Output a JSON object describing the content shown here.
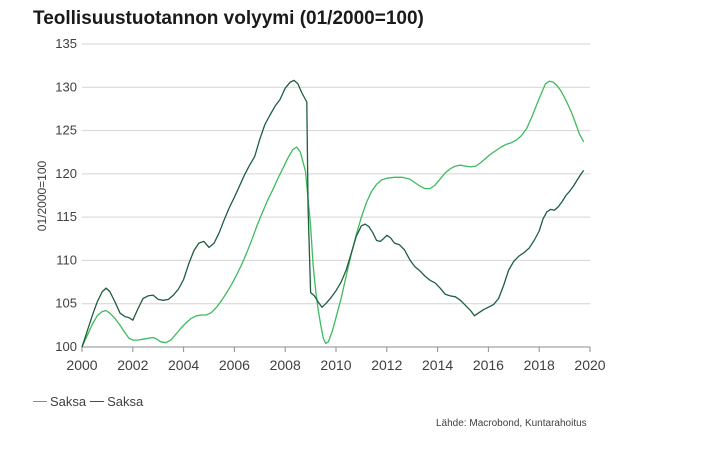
{
  "title": "Teollisuustuotannon volyymi (01/2000=100)",
  "source": "Lähde: Macrobond, Kuntarahoitus",
  "chart_data": {
    "type": "line",
    "title": "Teollisuustuotannon volyymi (01/2000=100)",
    "xlabel": "",
    "ylabel": "01/2000=100",
    "xlim": [
      2000,
      2020
    ],
    "ylim": [
      100,
      135
    ],
    "xticks": [
      "2000",
      "2002",
      "2004",
      "2006",
      "2008",
      "2010",
      "2012",
      "2014",
      "2016",
      "2018",
      "2020"
    ],
    "yticks": [
      "100",
      "105",
      "110",
      "115",
      "120",
      "125",
      "130",
      "135"
    ],
    "grid": "horizontal",
    "legend_position": "bottom-left",
    "series": [
      {
        "name": "Saksa",
        "color": "#3dbb5e",
        "points": [
          [
            2000.0,
            100.0
          ],
          [
            2000.2,
            101.3
          ],
          [
            2000.4,
            102.6
          ],
          [
            2000.6,
            103.6
          ],
          [
            2000.8,
            104.1
          ],
          [
            2000.95,
            104.2
          ],
          [
            2001.1,
            103.9
          ],
          [
            2001.3,
            103.3
          ],
          [
            2001.5,
            102.5
          ],
          [
            2001.7,
            101.6
          ],
          [
            2001.85,
            101.0
          ],
          [
            2002.0,
            100.8
          ],
          [
            2002.2,
            100.8
          ],
          [
            2002.4,
            100.9
          ],
          [
            2002.6,
            101.0
          ],
          [
            2002.8,
            101.1
          ],
          [
            2002.95,
            100.9
          ],
          [
            2003.1,
            100.6
          ],
          [
            2003.3,
            100.5
          ],
          [
            2003.5,
            100.8
          ],
          [
            2003.7,
            101.5
          ],
          [
            2003.9,
            102.2
          ],
          [
            2004.1,
            102.8
          ],
          [
            2004.3,
            103.3
          ],
          [
            2004.5,
            103.6
          ],
          [
            2004.7,
            103.7
          ],
          [
            2004.9,
            103.7
          ],
          [
            2005.1,
            104.0
          ],
          [
            2005.3,
            104.6
          ],
          [
            2005.5,
            105.4
          ],
          [
            2005.7,
            106.3
          ],
          [
            2005.9,
            107.3
          ],
          [
            2006.1,
            108.4
          ],
          [
            2006.3,
            109.6
          ],
          [
            2006.5,
            111.0
          ],
          [
            2006.7,
            112.5
          ],
          [
            2006.9,
            114.1
          ],
          [
            2007.1,
            115.5
          ],
          [
            2007.3,
            116.9
          ],
          [
            2007.5,
            118.1
          ],
          [
            2007.7,
            119.4
          ],
          [
            2007.9,
            120.6
          ],
          [
            2008.1,
            121.8
          ],
          [
            2008.3,
            122.8
          ],
          [
            2008.45,
            123.1
          ],
          [
            2008.6,
            122.5
          ],
          [
            2008.8,
            120.3
          ],
          [
            2009.0,
            114.0
          ],
          [
            2009.1,
            109.5
          ],
          [
            2009.2,
            106.5
          ],
          [
            2009.3,
            104.3
          ],
          [
            2009.4,
            102.5
          ],
          [
            2009.5,
            101.0
          ],
          [
            2009.6,
            100.4
          ],
          [
            2009.7,
            100.6
          ],
          [
            2009.85,
            101.8
          ],
          [
            2010.0,
            103.4
          ],
          [
            2010.2,
            105.6
          ],
          [
            2010.4,
            108.2
          ],
          [
            2010.6,
            110.7
          ],
          [
            2010.8,
            113.0
          ],
          [
            2011.0,
            115.0
          ],
          [
            2011.2,
            116.7
          ],
          [
            2011.4,
            118.0
          ],
          [
            2011.6,
            118.8
          ],
          [
            2011.8,
            119.3
          ],
          [
            2012.0,
            119.5
          ],
          [
            2012.3,
            119.6
          ],
          [
            2012.6,
            119.6
          ],
          [
            2012.9,
            119.4
          ],
          [
            2013.1,
            119.0
          ],
          [
            2013.3,
            118.6
          ],
          [
            2013.5,
            118.3
          ],
          [
            2013.7,
            118.3
          ],
          [
            2013.9,
            118.7
          ],
          [
            2014.1,
            119.4
          ],
          [
            2014.3,
            120.1
          ],
          [
            2014.5,
            120.6
          ],
          [
            2014.7,
            120.9
          ],
          [
            2014.9,
            121.0
          ],
          [
            2015.1,
            120.9
          ],
          [
            2015.3,
            120.8
          ],
          [
            2015.5,
            120.9
          ],
          [
            2015.7,
            121.3
          ],
          [
            2015.9,
            121.8
          ],
          [
            2016.1,
            122.3
          ],
          [
            2016.3,
            122.7
          ],
          [
            2016.5,
            123.1
          ],
          [
            2016.7,
            123.4
          ],
          [
            2016.9,
            123.6
          ],
          [
            2017.1,
            123.9
          ],
          [
            2017.3,
            124.4
          ],
          [
            2017.5,
            125.2
          ],
          [
            2017.7,
            126.5
          ],
          [
            2017.9,
            128.0
          ],
          [
            2018.1,
            129.4
          ],
          [
            2018.25,
            130.4
          ],
          [
            2018.4,
            130.7
          ],
          [
            2018.55,
            130.6
          ],
          [
            2018.7,
            130.2
          ],
          [
            2018.85,
            129.6
          ],
          [
            2019.0,
            128.8
          ],
          [
            2019.15,
            127.9
          ],
          [
            2019.3,
            126.9
          ],
          [
            2019.45,
            125.7
          ],
          [
            2019.6,
            124.5
          ],
          [
            2019.75,
            123.7
          ]
        ]
      },
      {
        "name": "Saksa",
        "color": "#1f5e3f",
        "points": [
          [
            2000.0,
            100.0
          ],
          [
            2000.2,
            101.8
          ],
          [
            2000.4,
            103.6
          ],
          [
            2000.6,
            105.2
          ],
          [
            2000.8,
            106.4
          ],
          [
            2000.95,
            106.8
          ],
          [
            2001.1,
            106.4
          ],
          [
            2001.3,
            105.2
          ],
          [
            2001.5,
            103.9
          ],
          [
            2001.7,
            103.5
          ],
          [
            2001.85,
            103.4
          ],
          [
            2002.0,
            103.1
          ],
          [
            2002.2,
            104.4
          ],
          [
            2002.4,
            105.6
          ],
          [
            2002.6,
            105.9
          ],
          [
            2002.8,
            106.0
          ],
          [
            2003.0,
            105.5
          ],
          [
            2003.2,
            105.4
          ],
          [
            2003.4,
            105.5
          ],
          [
            2003.6,
            106.0
          ],
          [
            2003.8,
            106.7
          ],
          [
            2004.0,
            107.8
          ],
          [
            2004.2,
            109.6
          ],
          [
            2004.4,
            111.1
          ],
          [
            2004.6,
            112.0
          ],
          [
            2004.8,
            112.2
          ],
          [
            2005.0,
            111.5
          ],
          [
            2005.2,
            112.0
          ],
          [
            2005.4,
            113.2
          ],
          [
            2005.6,
            114.7
          ],
          [
            2005.8,
            116.1
          ],
          [
            2006.0,
            117.3
          ],
          [
            2006.2,
            118.6
          ],
          [
            2006.4,
            119.9
          ],
          [
            2006.6,
            121.0
          ],
          [
            2006.8,
            122.0
          ],
          [
            2007.0,
            124.0
          ],
          [
            2007.2,
            125.7
          ],
          [
            2007.4,
            126.8
          ],
          [
            2007.6,
            127.8
          ],
          [
            2007.8,
            128.6
          ],
          [
            2008.0,
            129.9
          ],
          [
            2008.2,
            130.6
          ],
          [
            2008.35,
            130.8
          ],
          [
            2008.5,
            130.4
          ],
          [
            2008.65,
            129.4
          ],
          [
            2008.85,
            128.3
          ],
          [
            2008.9,
            116.0
          ],
          [
            2009.0,
            106.3
          ],
          [
            2009.15,
            105.9
          ],
          [
            2009.3,
            105.2
          ],
          [
            2009.45,
            104.6
          ],
          [
            2009.6,
            105.0
          ],
          [
            2009.8,
            105.7
          ],
          [
            2010.0,
            106.5
          ],
          [
            2010.2,
            107.5
          ],
          [
            2010.4,
            108.9
          ],
          [
            2010.6,
            110.8
          ],
          [
            2010.8,
            112.8
          ],
          [
            2011.0,
            114.0
          ],
          [
            2011.15,
            114.2
          ],
          [
            2011.3,
            113.9
          ],
          [
            2011.45,
            113.2
          ],
          [
            2011.6,
            112.3
          ],
          [
            2011.75,
            112.2
          ],
          [
            2011.9,
            112.6
          ],
          [
            2012.0,
            112.9
          ],
          [
            2012.15,
            112.6
          ],
          [
            2012.3,
            112.0
          ],
          [
            2012.5,
            111.8
          ],
          [
            2012.7,
            111.2
          ],
          [
            2012.9,
            110.1
          ],
          [
            2013.1,
            109.3
          ],
          [
            2013.3,
            108.8
          ],
          [
            2013.5,
            108.2
          ],
          [
            2013.7,
            107.7
          ],
          [
            2013.9,
            107.4
          ],
          [
            2014.1,
            106.8
          ],
          [
            2014.3,
            106.1
          ],
          [
            2014.5,
            105.9
          ],
          [
            2014.7,
            105.8
          ],
          [
            2014.9,
            105.4
          ],
          [
            2015.1,
            104.8
          ],
          [
            2015.3,
            104.2
          ],
          [
            2015.45,
            103.6
          ],
          [
            2015.6,
            103.9
          ],
          [
            2015.8,
            104.3
          ],
          [
            2016.0,
            104.6
          ],
          [
            2016.2,
            104.9
          ],
          [
            2016.4,
            105.6
          ],
          [
            2016.6,
            107.1
          ],
          [
            2016.8,
            108.9
          ],
          [
            2017.0,
            109.9
          ],
          [
            2017.2,
            110.5
          ],
          [
            2017.4,
            110.9
          ],
          [
            2017.6,
            111.4
          ],
          [
            2017.8,
            112.3
          ],
          [
            2018.0,
            113.4
          ],
          [
            2018.15,
            114.8
          ],
          [
            2018.3,
            115.6
          ],
          [
            2018.45,
            115.9
          ],
          [
            2018.6,
            115.8
          ],
          [
            2018.75,
            116.2
          ],
          [
            2018.9,
            116.8
          ],
          [
            2019.05,
            117.5
          ],
          [
            2019.2,
            118.0
          ],
          [
            2019.35,
            118.6
          ],
          [
            2019.5,
            119.3
          ],
          [
            2019.65,
            120.0
          ],
          [
            2019.75,
            120.4
          ]
        ]
      }
    ]
  }
}
